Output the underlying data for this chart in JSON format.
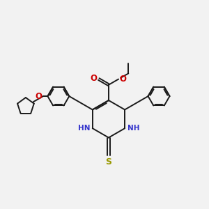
{
  "background_color": "#f2f2f2",
  "bond_color": "#1a1a1a",
  "nitrogen_color": "#3333cc",
  "oxygen_color": "#cc0000",
  "sulfur_color": "#999900",
  "line_width": 1.4,
  "fig_width": 3.0,
  "fig_height": 3.0,
  "dpi": 100,
  "xlim": [
    0,
    10
  ],
  "ylim": [
    0,
    10
  ]
}
